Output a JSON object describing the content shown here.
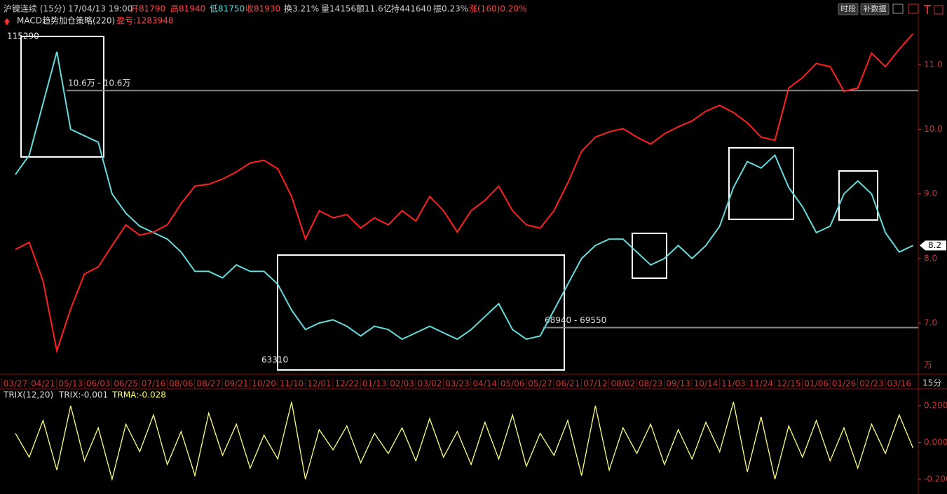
{
  "header": {
    "symbol": "沪镍连续 (15分)",
    "time": "17/04/13 19:00",
    "open": "开81790",
    "high": "高81940",
    "low": "低81750",
    "close": "收81930",
    "turnover": "换3.21%",
    "volume": "量14156",
    "amount": "额11.6亿",
    "holding": "持441640",
    "amplitude": "振0.23%",
    "change": "涨(160)0.20%",
    "buttons": [
      "时段",
      "补数据"
    ]
  },
  "chart_data": [
    {
      "type": "line",
      "title": "MACD趋势加仓策略(220)",
      "subtitle": "盈亏:1283948",
      "unit": "万",
      "period": "15分",
      "categories": [
        "03/27",
        null,
        "04/21",
        null,
        "05/13",
        null,
        "06/03",
        null,
        "06/25",
        null,
        "07/16",
        null,
        "08/06",
        null,
        "08/27",
        null,
        "09/21",
        null,
        "10/20",
        null,
        "11/10",
        null,
        "12/01",
        null,
        "12/22",
        null,
        "01/13",
        null,
        "02/03",
        null,
        "03/02",
        null,
        "03/23",
        null,
        "04/14",
        null,
        "05/06",
        null,
        "05/27",
        null,
        "06/21",
        null,
        "07/12",
        null,
        "08/02",
        null,
        "08/23",
        null,
        "09/13",
        null,
        "10/14",
        null,
        "11/03",
        null,
        "11/24",
        null,
        "12/15",
        null,
        "01/06",
        null,
        "01/26",
        null,
        "02/23",
        null,
        "03/16",
        null
      ],
      "series": [
        {
          "color": "#66dddd",
          "values": [
            9.3,
            9.6,
            10.4,
            11.2,
            10.0,
            9.9,
            9.8,
            9.0,
            8.7,
            8.5,
            8.4,
            8.3,
            8.1,
            7.8,
            7.8,
            7.7,
            7.9,
            7.8,
            7.8,
            7.6,
            7.2,
            6.9,
            7.0,
            7.05,
            6.95,
            6.8,
            6.95,
            6.9,
            6.75,
            6.85,
            6.95,
            6.85,
            6.75,
            6.9,
            7.1,
            7.3,
            6.9,
            6.75,
            6.8,
            7.2,
            7.6,
            8.0,
            8.2,
            8.3,
            8.3,
            8.1,
            7.9,
            8.0,
            8.2,
            8.0,
            8.2,
            8.5,
            9.1,
            9.5,
            9.4,
            9.6,
            9.1,
            8.8,
            8.4,
            8.5,
            9.0,
            9.2,
            9.0,
            8.4,
            8.1,
            8.2
          ]
        },
        {
          "color": "#ff2020",
          "values": [
            8.14,
            8.25,
            7.65,
            6.57,
            7.22,
            7.76,
            7.87,
            8.2,
            8.52,
            8.36,
            8.41,
            8.52,
            8.85,
            9.12,
            9.15,
            9.23,
            9.34,
            9.48,
            9.52,
            9.39,
            8.96,
            8.3,
            8.74,
            8.63,
            8.68,
            8.47,
            8.63,
            8.52,
            8.74,
            8.58,
            8.96,
            8.74,
            8.41,
            8.74,
            8.9,
            9.12,
            8.74,
            8.52,
            8.47,
            8.74,
            9.17,
            9.66,
            9.88,
            9.96,
            10.01,
            9.88,
            9.77,
            9.93,
            10.04,
            10.13,
            10.28,
            10.37,
            10.26,
            10.1,
            9.88,
            9.83,
            10.64,
            10.8,
            11.02,
            10.97,
            10.59,
            10.64,
            11.18,
            10.97,
            11.24,
            11.48
          ]
        }
      ],
      "ylim": [
        6.23,
        11.59
      ],
      "yticks": [
        {
          "value": 11,
          "label": "11.0"
        },
        {
          "value": 10,
          "label": "10.0"
        },
        {
          "value": 9,
          "label": "9.0"
        },
        {
          "value": 8,
          "label": "8.0"
        },
        {
          "value": 7,
          "label": "7.0"
        }
      ],
      "levels": [
        {
          "value": 10.6,
          "label": "10.6万 - 10.6万"
        },
        {
          "value": 6.93,
          "label": "68940 - 69550"
        }
      ],
      "annotations": [
        "115290",
        "63310"
      ],
      "last_price": 8.2
    },
    {
      "type": "line",
      "title": "TRIX(12,20)",
      "readouts": [
        {
          "text": "TRIX:-0.001",
          "color": "#dddddd"
        },
        {
          "text": "TRMA:-0.028",
          "color": "#ffff66"
        }
      ],
      "series": [
        {
          "color": "#ffff80",
          "values": [
            0.05,
            -0.08,
            0.12,
            -0.15,
            0.2,
            -0.1,
            0.08,
            -0.2,
            0.1,
            -0.05,
            0.15,
            -0.12,
            0.06,
            -0.18,
            0.16,
            -0.07,
            0.1,
            -0.14,
            0.04,
            -0.09,
            0.22,
            -0.2,
            0.07,
            -0.04,
            0.09,
            -0.11,
            0.05,
            -0.06,
            0.08,
            -0.1,
            0.13,
            -0.08,
            0.06,
            -0.12,
            0.11,
            -0.09,
            0.15,
            -0.13,
            0.05,
            -0.07,
            0.12,
            -0.18,
            0.2,
            -0.15,
            0.08,
            -0.06,
            0.1,
            -0.12,
            0.07,
            -0.09,
            0.11,
            -0.05,
            0.22,
            -0.16,
            0.14,
            -0.2,
            0.09,
            -0.08,
            0.12,
            -0.1,
            0.08,
            -0.14,
            0.1,
            -0.06,
            0.15,
            -0.03
          ]
        }
      ],
      "ylim": [
        -0.261,
        0.261
      ],
      "yticks": [
        {
          "value": 0.2,
          "label": "0.200"
        },
        {
          "value": 0,
          "label": "0.000"
        },
        {
          "value": -0.2,
          "label": "-0.200"
        }
      ]
    }
  ]
}
